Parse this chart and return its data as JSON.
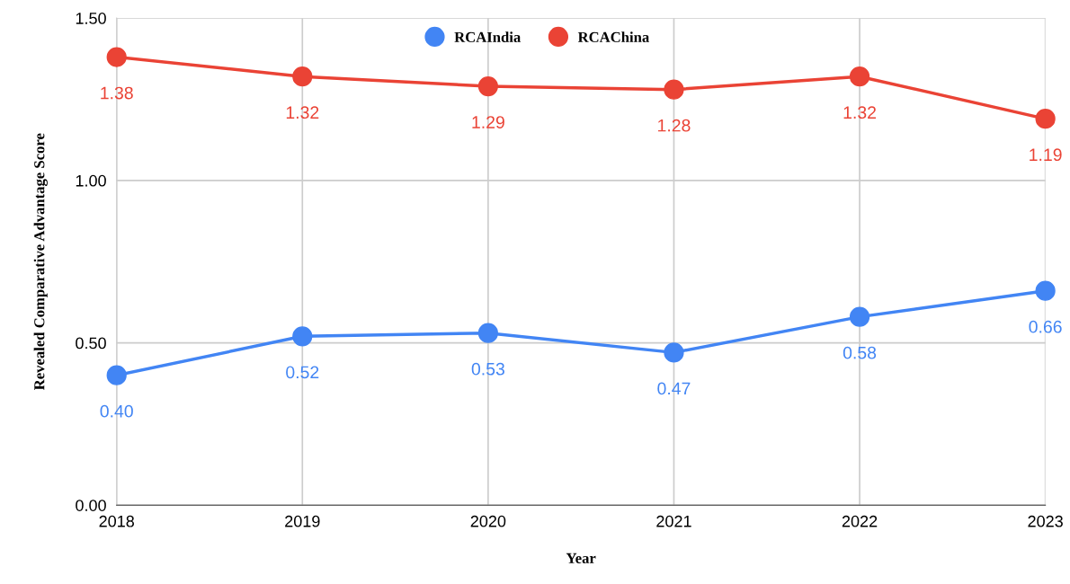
{
  "chart_data": {
    "type": "line",
    "xlabel": "Year",
    "ylabel": "Revealed Comparative Advantage Score",
    "categories": [
      "2018",
      "2019",
      "2020",
      "2021",
      "2022",
      "2023"
    ],
    "series": [
      {
        "name": "RCAIndia",
        "color": "#4285f4",
        "values": [
          0.4,
          0.52,
          0.53,
          0.47,
          0.58,
          0.66
        ],
        "value_labels": [
          "0.40",
          "0.52",
          "0.53",
          "0.47",
          "0.58",
          "0.66"
        ]
      },
      {
        "name": "RCAChina",
        "color": "#ea4335",
        "values": [
          1.38,
          1.32,
          1.29,
          1.28,
          1.32,
          1.19
        ],
        "value_labels": [
          "1.38",
          "1.32",
          "1.29",
          "1.28",
          "1.32",
          "1.19"
        ]
      }
    ],
    "ylim": [
      0,
      1.5
    ],
    "yticks": [
      {
        "value": 0,
        "label": "0.00"
      },
      {
        "value": 0.5,
        "label": "0.50"
      },
      {
        "value": 1.0,
        "label": "1.00"
      },
      {
        "value": 1.5,
        "label": "1.50"
      }
    ],
    "grid": true,
    "legend": "top",
    "marker": "circle",
    "line_style": "solid"
  }
}
